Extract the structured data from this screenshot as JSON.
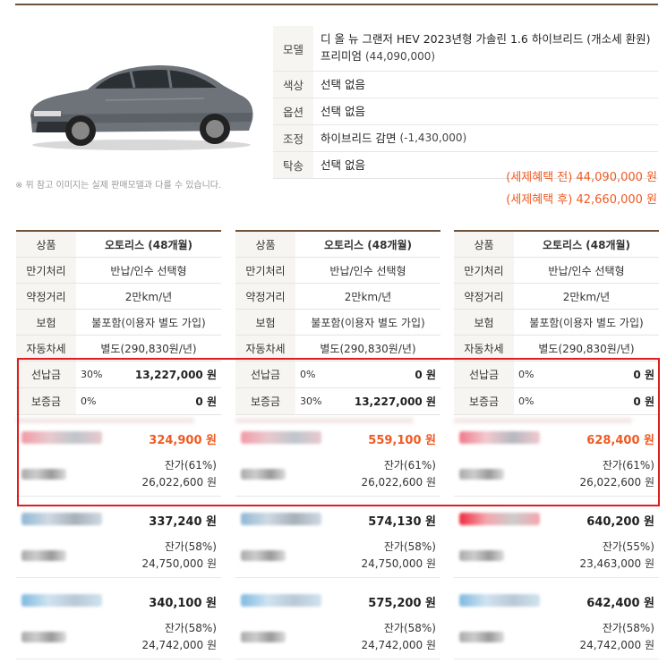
{
  "vehicle": {
    "model_label": "모델",
    "model_name": "디 올 뉴 그랜저 HEV 2023년형 가솔린 1.6 하이브리드 (개소세 환원) 프리미엄",
    "model_price": "(44,090,000)",
    "color_label": "색상",
    "color_value": "선택 없음",
    "option_label": "옵션",
    "option_value": "선택 없음",
    "adjust_label": "조정",
    "adjust_value": "하이브리드 감면",
    "adjust_price": "(-1,430,000)",
    "consign_label": "탁송",
    "consign_value": "선택 없음",
    "note": "※ 위 참고 이미지는 실제 판매모델과 다를 수 있습니다.",
    "price_before": "(세제혜택 전) 44,090,000 원",
    "price_after": "(세제혜택 후) 42,660,000 원"
  },
  "plans": [
    {
      "labels": {
        "product": "상품",
        "maturity": "만기처리",
        "mileage": "약정거리",
        "insurance": "보험",
        "tax": "자동차세",
        "prepay": "선납금",
        "deposit": "보증금"
      },
      "product": "오토리스 (48개월)",
      "maturity": "반납/인수 선택형",
      "mileage": "2만km/년",
      "insurance": "불포함(이용자 별도 가입)",
      "tax": "별도(290,830원/년)",
      "prepay_pct": "30%",
      "prepay_amt": "13,227,000 원",
      "deposit_pct": "0%",
      "deposit_amt": "0 원",
      "offers": [
        {
          "monthly": "324,900 원",
          "residual": "잔가(61%)",
          "residual_amt": "26,022,600 원"
        },
        {
          "monthly": "337,240 원",
          "residual": "잔가(58%)",
          "residual_amt": "24,750,000 원"
        },
        {
          "monthly": "340,100 원",
          "residual": "잔가(58%)",
          "residual_amt": "24,742,000 원"
        }
      ]
    },
    {
      "labels": {
        "product": "상품",
        "maturity": "만기처리",
        "mileage": "약정거리",
        "insurance": "보험",
        "tax": "자동차세",
        "prepay": "선납금",
        "deposit": "보증금"
      },
      "product": "오토리스 (48개월)",
      "maturity": "반납/인수 선택형",
      "mileage": "2만km/년",
      "insurance": "불포함(이용자 별도 가입)",
      "tax": "별도(290,830원/년)",
      "prepay_pct": "0%",
      "prepay_amt": "0 원",
      "deposit_pct": "30%",
      "deposit_amt": "13,227,000 원",
      "offers": [
        {
          "monthly": "559,100 원",
          "residual": "잔가(61%)",
          "residual_amt": "26,022,600 원"
        },
        {
          "monthly": "574,130 원",
          "residual": "잔가(58%)",
          "residual_amt": "24,750,000 원"
        },
        {
          "monthly": "575,200 원",
          "residual": "잔가(58%)",
          "residual_amt": "24,742,000 원"
        }
      ]
    },
    {
      "labels": {
        "product": "상품",
        "maturity": "만기처리",
        "mileage": "약정거리",
        "insurance": "보험",
        "tax": "자동차세",
        "prepay": "선납금",
        "deposit": "보증금"
      },
      "product": "오토리스 (48개월)",
      "maturity": "반납/인수 선택형",
      "mileage": "2만km/년",
      "insurance": "불포함(이용자 별도 가입)",
      "tax": "별도(290,830원/년)",
      "prepay_pct": "0%",
      "prepay_amt": "0 원",
      "deposit_pct": "0%",
      "deposit_amt": "0 원",
      "offers": [
        {
          "monthly": "628,400 원",
          "residual": "잔가(61%)",
          "residual_amt": "26,022,600 원"
        },
        {
          "monthly": "640,200 원",
          "residual": "잔가(55%)",
          "residual_amt": "23,463,000 원"
        },
        {
          "monthly": "642,400 원",
          "residual": "잔가(58%)",
          "residual_amt": "24,742,000 원"
        }
      ]
    }
  ],
  "colors": {
    "accent": "#f05a22",
    "frame": "#6e5138",
    "highlight_box": "#e01e1e",
    "label_bg": "#f7f5f2"
  }
}
